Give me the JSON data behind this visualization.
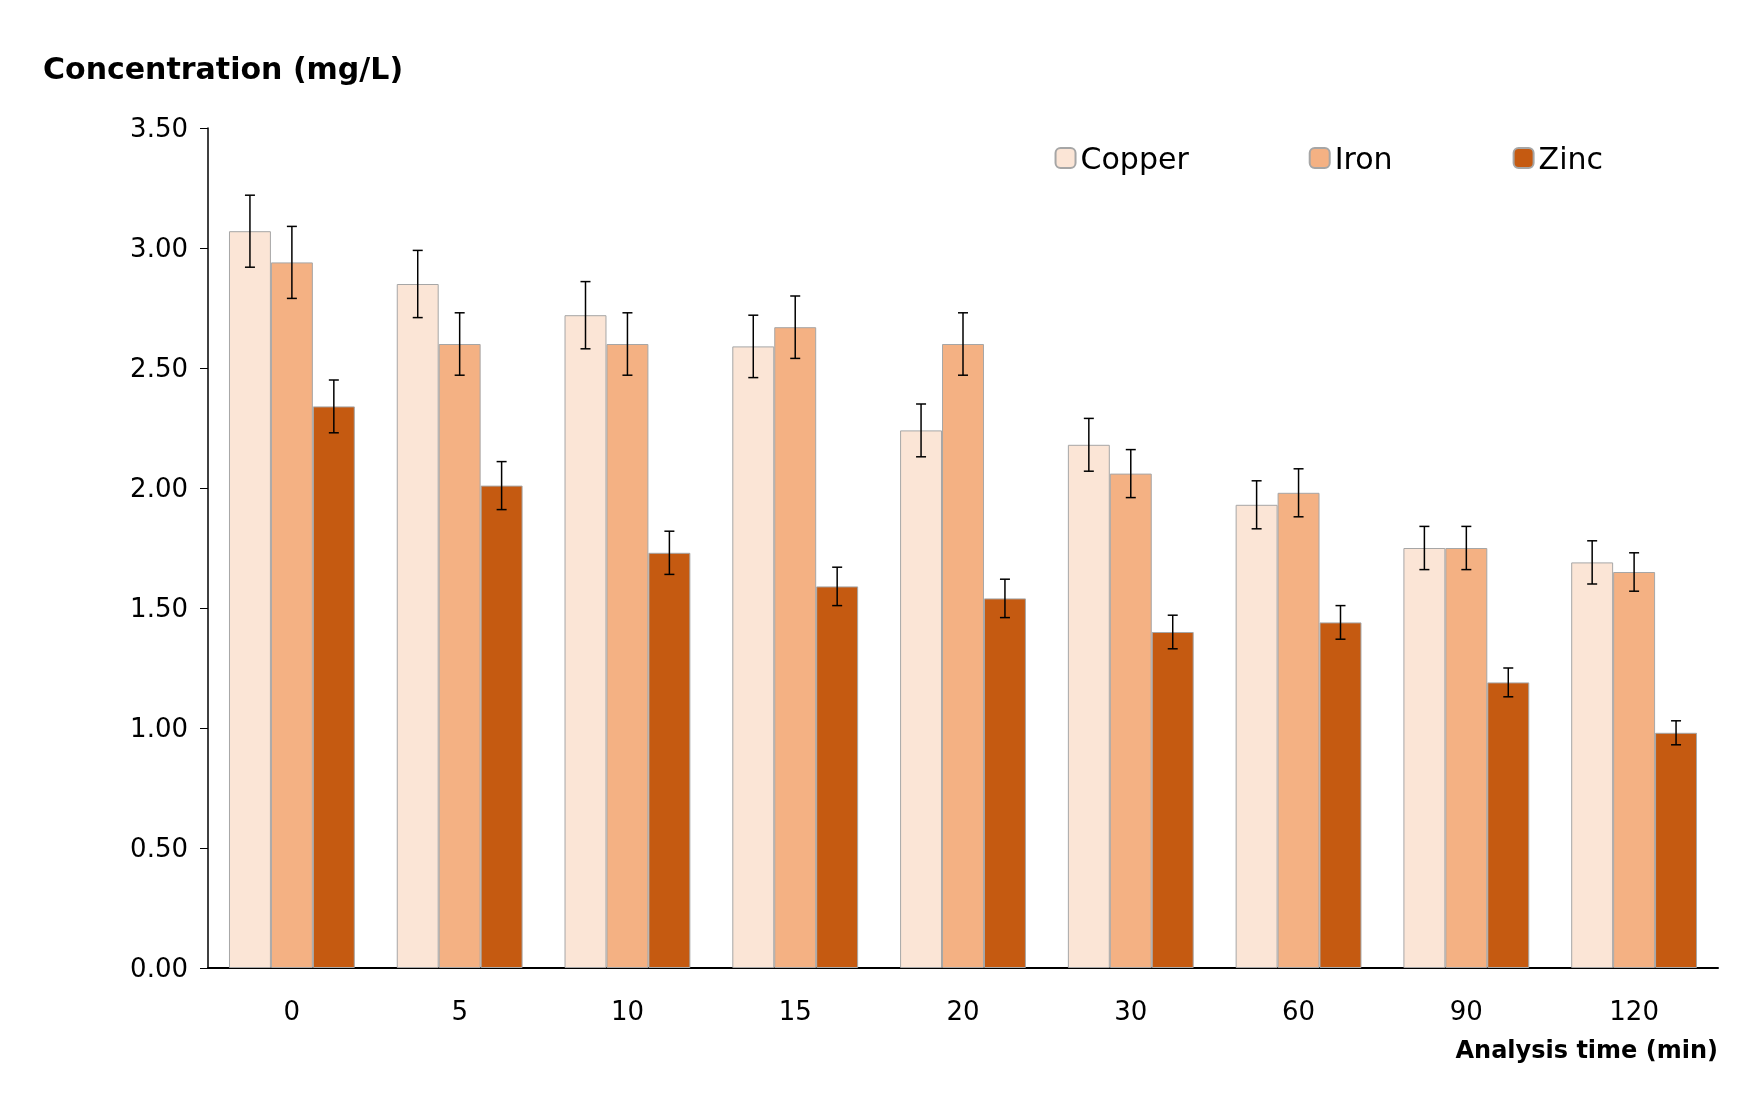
{
  "chart_data": {
    "type": "bar",
    "xlabel": "Analysis time (min)",
    "ylabel": "Concentration (mg/L)",
    "categories": [
      "0",
      "5",
      "10",
      "15",
      "20",
      "30",
      "60",
      "90",
      "120"
    ],
    "series": [
      {
        "name": "Copper",
        "color": "#fbe5d6",
        "values": [
          3.07,
          2.85,
          2.72,
          2.59,
          2.24,
          2.18,
          1.93,
          1.75,
          1.69
        ],
        "errors": [
          0.15,
          0.14,
          0.14,
          0.13,
          0.11,
          0.11,
          0.1,
          0.09,
          0.09
        ]
      },
      {
        "name": "Iron",
        "color": "#f4b183",
        "values": [
          2.94,
          2.6,
          2.6,
          2.67,
          2.6,
          2.06,
          1.98,
          1.75,
          1.65
        ],
        "errors": [
          0.15,
          0.13,
          0.13,
          0.13,
          0.13,
          0.1,
          0.1,
          0.09,
          0.08
        ]
      },
      {
        "name": "Zinc",
        "color": "#c55a11",
        "values": [
          2.34,
          2.01,
          1.73,
          1.59,
          1.54,
          1.4,
          1.44,
          1.19,
          0.98
        ],
        "errors": [
          0.11,
          0.1,
          0.09,
          0.08,
          0.08,
          0.07,
          0.07,
          0.06,
          0.05
        ]
      }
    ],
    "ylim": [
      0,
      3.5
    ],
    "yticks": [
      {
        "value": 0,
        "label": "0.00"
      },
      {
        "value": 0.5,
        "label": "0.50"
      },
      {
        "value": 1,
        "label": "1.00"
      },
      {
        "value": 1.5,
        "label": "1.50"
      },
      {
        "value": 2,
        "label": "2.00"
      },
      {
        "value": 2.5,
        "label": "2.50"
      },
      {
        "value": 3,
        "label": "3.00"
      },
      {
        "value": 3.5,
        "label": "3.50"
      }
    ],
    "grid": false,
    "legend": "top right"
  }
}
